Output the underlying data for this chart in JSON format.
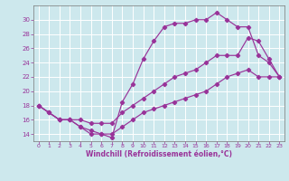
{
  "xlabel": "Windchill (Refroidissement éolien,°C)",
  "bg_color": "#cde8ed",
  "grid_color": "#ffffff",
  "line_color": "#993399",
  "xlim": [
    -0.5,
    23.5
  ],
  "ylim": [
    13.0,
    32.0
  ],
  "xticks": [
    0,
    1,
    2,
    3,
    4,
    5,
    6,
    7,
    8,
    9,
    10,
    11,
    12,
    13,
    14,
    15,
    16,
    17,
    18,
    19,
    20,
    21,
    22,
    23
  ],
  "yticks": [
    14,
    16,
    18,
    20,
    22,
    24,
    26,
    28,
    30
  ],
  "curve1_x": [
    0,
    1,
    2,
    3,
    4,
    5,
    6,
    7,
    8,
    9,
    10,
    11,
    12,
    13,
    14,
    15,
    16,
    17,
    18,
    19,
    20,
    21,
    22,
    23
  ],
  "curve1_y": [
    18,
    17,
    16,
    16,
    15,
    14,
    14,
    13.5,
    18.5,
    21,
    24.5,
    27,
    29,
    29.5,
    29.5,
    30,
    30,
    31,
    30,
    29,
    29,
    25,
    24,
    22
  ],
  "curve2_x": [
    0,
    2,
    3,
    4,
    5,
    6,
    7,
    8,
    9,
    10,
    11,
    12,
    13,
    14,
    15,
    16,
    17,
    18,
    19,
    20,
    21,
    22,
    23
  ],
  "curve2_y": [
    18,
    16,
    16,
    16,
    15.5,
    15.5,
    15.5,
    17,
    18,
    19,
    20,
    21,
    22,
    22.5,
    23,
    24,
    25,
    25,
    25,
    27.5,
    27,
    24.5,
    22
  ],
  "curve3_x": [
    0,
    1,
    2,
    3,
    4,
    5,
    6,
    7,
    8,
    9,
    10,
    11,
    12,
    13,
    14,
    15,
    16,
    17,
    18,
    19,
    20,
    21,
    22,
    23
  ],
  "curve3_y": [
    18,
    17,
    16,
    16,
    15,
    14.5,
    14,
    14,
    15,
    16,
    17,
    17.5,
    18,
    18.5,
    19,
    19.5,
    20,
    21,
    22,
    22.5,
    23,
    22,
    22,
    22
  ]
}
